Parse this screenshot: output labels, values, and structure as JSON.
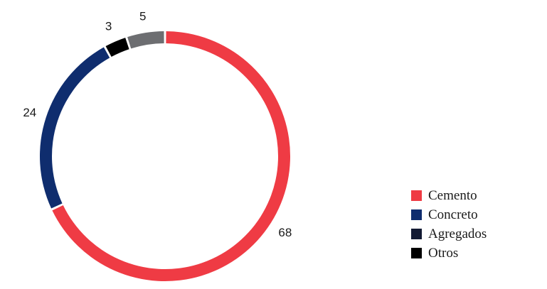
{
  "chart_data": {
    "type": "pie",
    "variant": "donut",
    "title": "",
    "categories": [
      "Cemento",
      "Concreto",
      "Agregados",
      "Otros"
    ],
    "slices": [
      {
        "label": "Cemento",
        "value": 68,
        "color": "#ef3b44"
      },
      {
        "label": "Concreto",
        "value": 24,
        "color": "#0f2d6e"
      },
      {
        "label": "Agregados",
        "value": 3,
        "color": "#000000"
      },
      {
        "label": "Otros",
        "value": 5,
        "color": "#6d6e71"
      }
    ],
    "data_labels": [
      "68",
      "24",
      "3",
      "5"
    ],
    "legend": {
      "position": "bottom-right",
      "items": [
        {
          "label": "Cemento",
          "color": "#ef3b44"
        },
        {
          "label": "Concreto",
          "color": "#0f2d6e"
        },
        {
          "label": "Agregados",
          "color": "#131a33"
        },
        {
          "label": "Otros",
          "color": "#000000"
        }
      ]
    }
  }
}
